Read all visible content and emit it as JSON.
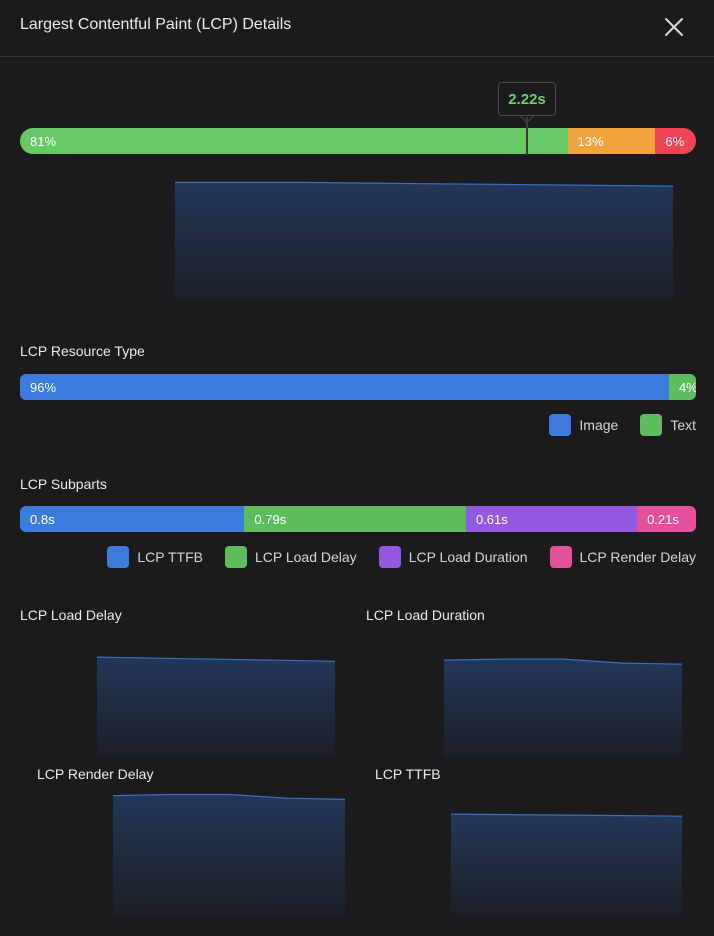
{
  "header": {
    "title": "Largest Contentful Paint (LCP) Details"
  },
  "overview": {
    "marker_value": "2.22s",
    "marker_fraction": 0.75,
    "segments": [
      {
        "label": "81%",
        "value": 81,
        "color": "#66c966"
      },
      {
        "label": "13%",
        "value": 13,
        "color": "#f1a33d"
      },
      {
        "label": "6%",
        "value": 6,
        "color": "#f24455"
      }
    ]
  },
  "resource_type": {
    "title": "LCP Resource Type",
    "segments": [
      {
        "label": "96%",
        "value": 96,
        "color": "#3a7be0"
      },
      {
        "label": "4%",
        "value": 4,
        "color": "#5dbd5d"
      }
    ],
    "legend": [
      {
        "label": "Image",
        "color": "#3a7be0"
      },
      {
        "label": "Text",
        "color": "#5dbd5d"
      }
    ]
  },
  "subparts": {
    "title": "LCP Subparts",
    "segments": [
      {
        "label": "0.8s",
        "value": 0.8,
        "color": "#3a7be0"
      },
      {
        "label": "0.79s",
        "value": 0.79,
        "color": "#5dbd5d"
      },
      {
        "label": "0.61s",
        "value": 0.61,
        "color": "#9558e2"
      },
      {
        "label": "0.21s",
        "value": 0.21,
        "color": "#e4509a"
      }
    ],
    "legend": [
      {
        "label": "LCP TTFB",
        "color": "#3a7be0"
      },
      {
        "label": "LCP Load Delay",
        "color": "#5dbd5d"
      },
      {
        "label": "LCP Load Duration",
        "color": "#9558e2"
      },
      {
        "label": "LCP Render Delay",
        "color": "#e4509a"
      }
    ]
  },
  "mini_charts": {
    "load_delay": {
      "title": "LCP Load Delay"
    },
    "load_duration": {
      "title": "LCP Load Duration"
    },
    "render_delay": {
      "title": "LCP Render Delay"
    },
    "ttfb": {
      "title": "LCP TTFB"
    }
  },
  "chart_data": [
    {
      "type": "area",
      "id": "overview-distribution",
      "x": [
        0,
        1,
        2,
        3,
        4
      ],
      "y": [
        0.98,
        0.98,
        0.97,
        0.96,
        0.95
      ]
    },
    {
      "type": "area",
      "id": "lcp-load-delay",
      "x": [
        0,
        1,
        2,
        3,
        4
      ],
      "y": [
        0.97,
        0.96,
        0.95,
        0.94,
        0.93
      ]
    },
    {
      "type": "area",
      "id": "lcp-load-duration",
      "x": [
        0,
        1,
        2,
        3,
        4
      ],
      "y": [
        0.96,
        0.97,
        0.97,
        0.93,
        0.92
      ]
    },
    {
      "type": "area",
      "id": "lcp-render-delay",
      "x": [
        0,
        1,
        2,
        3,
        4
      ],
      "y": [
        0.97,
        0.98,
        0.98,
        0.95,
        0.94
      ]
    },
    {
      "type": "area",
      "id": "lcp-ttfb",
      "x": [
        0,
        1,
        2,
        3,
        4
      ],
      "y": [
        0.98,
        0.975,
        0.97,
        0.965,
        0.96
      ]
    }
  ]
}
